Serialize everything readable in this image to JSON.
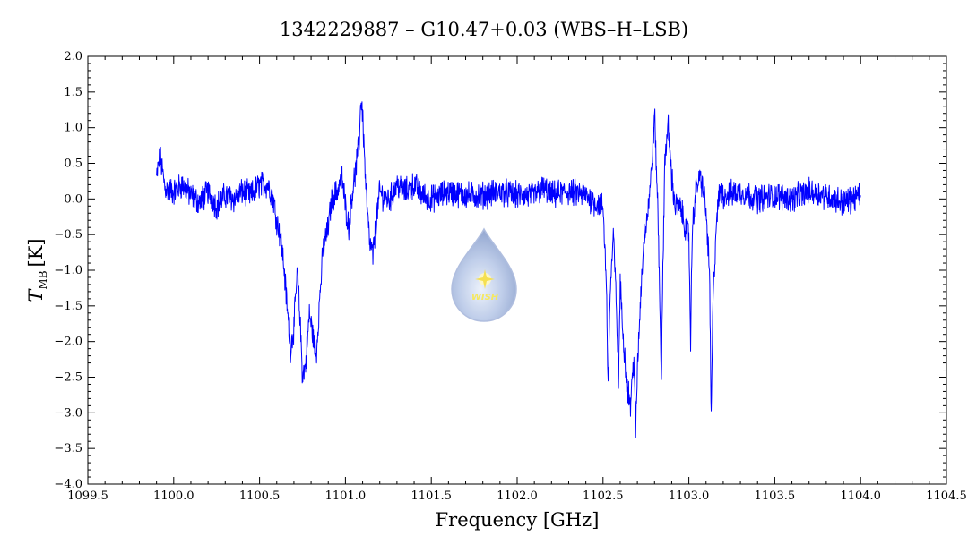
{
  "chart_data": {
    "type": "line",
    "title": "1342229887 – G10.47+0.03 (WBS–H–LSB)",
    "xlabel": "Frequency [GHz]",
    "ylabel_main": "T",
    "ylabel_sub": "MB",
    "ylabel_unit": "[K]",
    "xlim": [
      1099.5,
      1104.5
    ],
    "ylim": [
      -4.0,
      2.0
    ],
    "x_ticks": [
      "1099.5",
      "1100.0",
      "1100.5",
      "1101.0",
      "1101.5",
      "1102.0",
      "1102.5",
      "1103.0",
      "1103.5",
      "1104.0",
      "1104.5"
    ],
    "y_ticks": [
      "2.0",
      "1.5",
      "1.0",
      "0.5",
      "0.0",
      "−0.5",
      "−1.0",
      "−1.5",
      "−2.0",
      "−2.5",
      "−3.0",
      "−3.5",
      "−4.0"
    ],
    "grid": false,
    "legend": "none",
    "series": [
      {
        "color": "#0000ff",
        "x": [
          1099.9,
          1099.92,
          1099.95,
          1100.0,
          1100.05,
          1100.1,
          1100.15,
          1100.2,
          1100.25,
          1100.3,
          1100.35,
          1100.4,
          1100.45,
          1100.5,
          1100.55,
          1100.58,
          1100.6,
          1100.62,
          1100.64,
          1100.66,
          1100.68,
          1100.7,
          1100.72,
          1100.74,
          1100.75,
          1100.77,
          1100.79,
          1100.81,
          1100.83,
          1100.85,
          1100.87,
          1100.9,
          1100.92,
          1100.95,
          1100.98,
          1101.0,
          1101.02,
          1101.04,
          1101.06,
          1101.08,
          1101.09,
          1101.1,
          1101.12,
          1101.14,
          1101.16,
          1101.18,
          1101.2,
          1101.23,
          1101.26,
          1101.3,
          1101.35,
          1101.4,
          1101.45,
          1101.5,
          1101.6,
          1101.7,
          1101.8,
          1101.9,
          1102.0,
          1102.1,
          1102.15,
          1102.2,
          1102.3,
          1102.4,
          1102.45,
          1102.5,
          1102.52,
          1102.53,
          1102.54,
          1102.56,
          1102.58,
          1102.59,
          1102.6,
          1102.62,
          1102.64,
          1102.66,
          1102.68,
          1102.69,
          1102.7,
          1102.72,
          1102.74,
          1102.76,
          1102.78,
          1102.8,
          1102.82,
          1102.84,
          1102.85,
          1102.86,
          1102.88,
          1102.9,
          1102.92,
          1102.94,
          1102.96,
          1102.98,
          1103.0,
          1103.01,
          1103.02,
          1103.04,
          1103.06,
          1103.08,
          1103.1,
          1103.12,
          1103.13,
          1103.14,
          1103.16,
          1103.18,
          1103.2,
          1103.3,
          1103.4,
          1103.5,
          1103.6,
          1103.7,
          1103.8,
          1103.9,
          1104.0
        ],
        "y": [
          0.3,
          0.6,
          0.15,
          0.1,
          0.2,
          0.05,
          -0.05,
          0.1,
          -0.1,
          0.05,
          0.0,
          0.1,
          0.05,
          0.2,
          0.2,
          0.0,
          -0.3,
          -0.5,
          -0.9,
          -1.5,
          -2.1,
          -1.8,
          -1.0,
          -1.9,
          -2.5,
          -2.3,
          -1.6,
          -1.9,
          -2.2,
          -1.4,
          -0.7,
          -0.4,
          0.0,
          0.1,
          0.3,
          -0.1,
          -0.4,
          0.1,
          0.4,
          0.8,
          1.4,
          1.2,
          0.1,
          -0.6,
          -0.8,
          -0.3,
          0.1,
          0.0,
          0.0,
          0.2,
          0.1,
          0.2,
          0.05,
          0.0,
          0.1,
          0.05,
          0.05,
          0.1,
          0.05,
          0.05,
          0.15,
          0.05,
          0.1,
          0.05,
          -0.05,
          -0.1,
          -1.2,
          -2.7,
          -1.4,
          -0.5,
          -1.6,
          -2.6,
          -1.2,
          -2.0,
          -2.6,
          -2.9,
          -2.2,
          -3.3,
          -2.4,
          -1.3,
          -0.5,
          -0.2,
          0.3,
          1.2,
          -0.2,
          -2.5,
          -0.8,
          0.6,
          1.0,
          0.3,
          -0.1,
          -0.1,
          -0.2,
          -0.4,
          -0.5,
          -2.0,
          -0.4,
          0.1,
          0.3,
          0.2,
          -0.2,
          -1.0,
          -3.1,
          -1.5,
          -0.3,
          0.1,
          0.05,
          0.1,
          0.0,
          0.05,
          0.0,
          0.1,
          0.05,
          -0.05,
          0.05
        ]
      }
    ]
  },
  "logo": {
    "name": "wish-logo-icon",
    "text": "WISH",
    "color": "#8ea8d8"
  }
}
